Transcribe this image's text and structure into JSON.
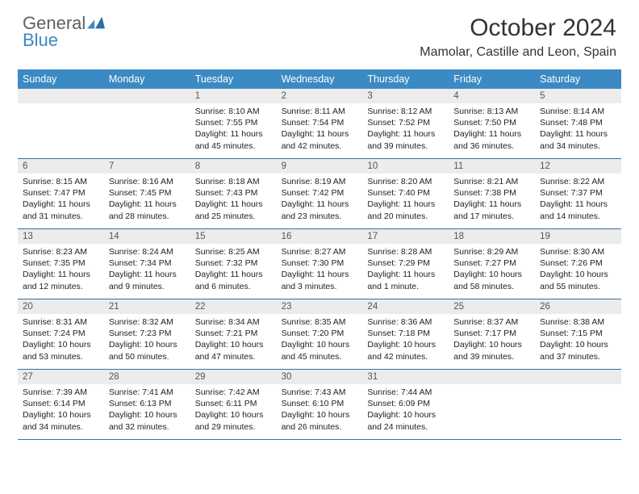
{
  "brand": {
    "general": "General",
    "blue": "Blue"
  },
  "title": "October 2024",
  "location": "Mamolar, Castille and Leon, Spain",
  "colors": {
    "header_bg": "#3b8ac4",
    "daynum_bg": "#ececec",
    "week_border": "#3b6f9c",
    "logo_gray": "#606060",
    "logo_blue": "#3b8ac4"
  },
  "dayNames": [
    "Sunday",
    "Monday",
    "Tuesday",
    "Wednesday",
    "Thursday",
    "Friday",
    "Saturday"
  ],
  "startOffset": 2,
  "days": [
    {
      "n": 1,
      "sr": "8:10 AM",
      "ss": "7:55 PM",
      "dl": "11 hours and 45 minutes."
    },
    {
      "n": 2,
      "sr": "8:11 AM",
      "ss": "7:54 PM",
      "dl": "11 hours and 42 minutes."
    },
    {
      "n": 3,
      "sr": "8:12 AM",
      "ss": "7:52 PM",
      "dl": "11 hours and 39 minutes."
    },
    {
      "n": 4,
      "sr": "8:13 AM",
      "ss": "7:50 PM",
      "dl": "11 hours and 36 minutes."
    },
    {
      "n": 5,
      "sr": "8:14 AM",
      "ss": "7:48 PM",
      "dl": "11 hours and 34 minutes."
    },
    {
      "n": 6,
      "sr": "8:15 AM",
      "ss": "7:47 PM",
      "dl": "11 hours and 31 minutes."
    },
    {
      "n": 7,
      "sr": "8:16 AM",
      "ss": "7:45 PM",
      "dl": "11 hours and 28 minutes."
    },
    {
      "n": 8,
      "sr": "8:18 AM",
      "ss": "7:43 PM",
      "dl": "11 hours and 25 minutes."
    },
    {
      "n": 9,
      "sr": "8:19 AM",
      "ss": "7:42 PM",
      "dl": "11 hours and 23 minutes."
    },
    {
      "n": 10,
      "sr": "8:20 AM",
      "ss": "7:40 PM",
      "dl": "11 hours and 20 minutes."
    },
    {
      "n": 11,
      "sr": "8:21 AM",
      "ss": "7:38 PM",
      "dl": "11 hours and 17 minutes."
    },
    {
      "n": 12,
      "sr": "8:22 AM",
      "ss": "7:37 PM",
      "dl": "11 hours and 14 minutes."
    },
    {
      "n": 13,
      "sr": "8:23 AM",
      "ss": "7:35 PM",
      "dl": "11 hours and 12 minutes."
    },
    {
      "n": 14,
      "sr": "8:24 AM",
      "ss": "7:34 PM",
      "dl": "11 hours and 9 minutes."
    },
    {
      "n": 15,
      "sr": "8:25 AM",
      "ss": "7:32 PM",
      "dl": "11 hours and 6 minutes."
    },
    {
      "n": 16,
      "sr": "8:27 AM",
      "ss": "7:30 PM",
      "dl": "11 hours and 3 minutes."
    },
    {
      "n": 17,
      "sr": "8:28 AM",
      "ss": "7:29 PM",
      "dl": "11 hours and 1 minute."
    },
    {
      "n": 18,
      "sr": "8:29 AM",
      "ss": "7:27 PM",
      "dl": "10 hours and 58 minutes."
    },
    {
      "n": 19,
      "sr": "8:30 AM",
      "ss": "7:26 PM",
      "dl": "10 hours and 55 minutes."
    },
    {
      "n": 20,
      "sr": "8:31 AM",
      "ss": "7:24 PM",
      "dl": "10 hours and 53 minutes."
    },
    {
      "n": 21,
      "sr": "8:32 AM",
      "ss": "7:23 PM",
      "dl": "10 hours and 50 minutes."
    },
    {
      "n": 22,
      "sr": "8:34 AM",
      "ss": "7:21 PM",
      "dl": "10 hours and 47 minutes."
    },
    {
      "n": 23,
      "sr": "8:35 AM",
      "ss": "7:20 PM",
      "dl": "10 hours and 45 minutes."
    },
    {
      "n": 24,
      "sr": "8:36 AM",
      "ss": "7:18 PM",
      "dl": "10 hours and 42 minutes."
    },
    {
      "n": 25,
      "sr": "8:37 AM",
      "ss": "7:17 PM",
      "dl": "10 hours and 39 minutes."
    },
    {
      "n": 26,
      "sr": "8:38 AM",
      "ss": "7:15 PM",
      "dl": "10 hours and 37 minutes."
    },
    {
      "n": 27,
      "sr": "7:39 AM",
      "ss": "6:14 PM",
      "dl": "10 hours and 34 minutes."
    },
    {
      "n": 28,
      "sr": "7:41 AM",
      "ss": "6:13 PM",
      "dl": "10 hours and 32 minutes."
    },
    {
      "n": 29,
      "sr": "7:42 AM",
      "ss": "6:11 PM",
      "dl": "10 hours and 29 minutes."
    },
    {
      "n": 30,
      "sr": "7:43 AM",
      "ss": "6:10 PM",
      "dl": "10 hours and 26 minutes."
    },
    {
      "n": 31,
      "sr": "7:44 AM",
      "ss": "6:09 PM",
      "dl": "10 hours and 24 minutes."
    }
  ],
  "labels": {
    "sunrise": "Sunrise:",
    "sunset": "Sunset:",
    "daylight": "Daylight:"
  }
}
